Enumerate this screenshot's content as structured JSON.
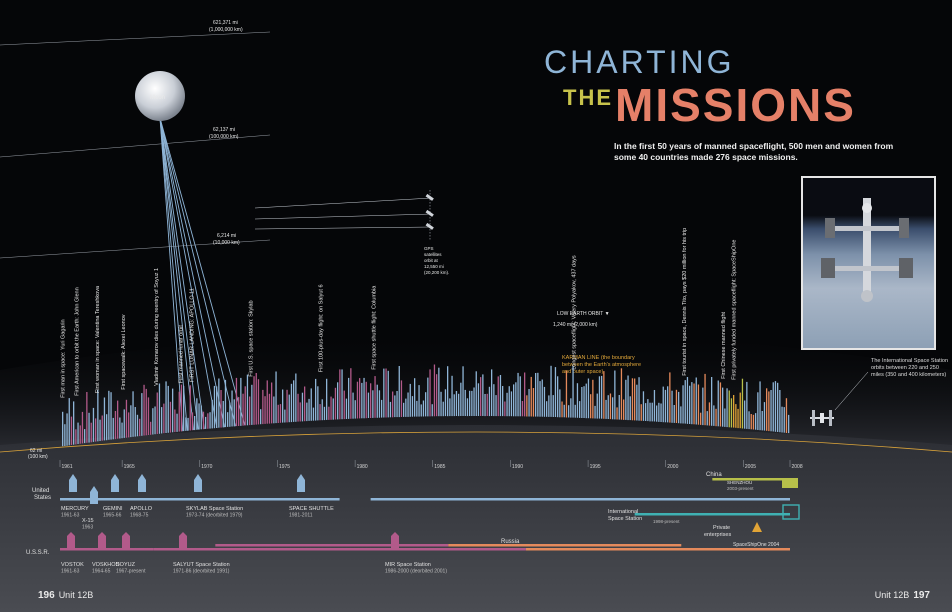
{
  "title": {
    "line1": "CHARTING",
    "line2": "THE",
    "line3": "MISSIONS"
  },
  "intro": "In the first 50 years of manned spaceflight, 500 men and women from some 40 countries made 276 space missions.",
  "iss_caption": "The International Space Station orbits between 220 and 250 miles (350 and 400 kilometers)",
  "footer": {
    "left_page": "196",
    "left_unit": "Unit 12B",
    "right_unit": "Unit 12B",
    "right_page": "197"
  },
  "altitude_lines": [
    {
      "mi": "621,371 mi",
      "km": "(1,000,000 km)"
    },
    {
      "mi": "62,137 mi",
      "km": "(100,000 km)"
    },
    {
      "mi": "6,214 mi",
      "km": "(10,000 km)"
    },
    {
      "mi": "62 mi",
      "km": "(100 km)"
    }
  ],
  "moon_label": "Moon",
  "gps_label": [
    "GPS",
    "satellites",
    "orbit at",
    "12,550 mi",
    "(20,200 km)."
  ],
  "leo_label": [
    "LOW EARTH ORBIT ▼",
    "1,240 mi (2,000 km)"
  ],
  "karman_label": [
    "KARMAN LINE (the boundary",
    "between the Earth's atmosphere",
    "and outer space)"
  ],
  "milestones": [
    {
      "text": "First man in space: Yuri Gagarin",
      "year": 1961.3
    },
    {
      "text": "First American to orbit the Earth: John Glenn",
      "year": 1962.2
    },
    {
      "text": "First woman in space: Valentina Tereshkova",
      "year": 1963.5
    },
    {
      "text": "First spacewalk: Alexei Leonov",
      "year": 1965.2
    },
    {
      "text": "Vladimir Komarov dies during reentry of Soyuz 1",
      "year": 1967.3
    },
    {
      "text": "First manned lunar orbit",
      "year": 1968.9
    },
    {
      "text": "FIRST LUNAR LANDING: APOLLO 11",
      "year": 1969.6
    },
    {
      "text": "First U.S. space station: Skylab",
      "year": 1973.4
    },
    {
      "text": "First 100-plus-day flight: on Salyut 6",
      "year": 1977.9
    },
    {
      "text": "First space shuttle flight: Columbia",
      "year": 1981.3
    },
    {
      "text": "Longest spaceflight: Valery Polyakov, 437 days",
      "year": 1994.2
    },
    {
      "text": "First tourist in space, Dennis Tito, pays $20 million for his trip",
      "year": 2001.3
    },
    {
      "text": "First Chinese manned flight",
      "year": 2003.8
    },
    {
      "text": "First privately funded manned spaceflight: SpaceShipOne",
      "year": 2004.5
    }
  ],
  "chart_data": {
    "type": "bar",
    "x_ticks": [
      "1961",
      "1965",
      "1970",
      "1975",
      "1980",
      "1985",
      "1990",
      "1995",
      "2000",
      "2005",
      "2008"
    ],
    "xlim": [
      1961,
      2008
    ],
    "series": [
      {
        "name": "United States",
        "color": "#8fb5d7"
      },
      {
        "name": "U.S.S.R.",
        "color": "#b25a8a"
      },
      {
        "name": "Russia",
        "color": "#e58a5c"
      },
      {
        "name": "China",
        "color": "#b7c04a"
      },
      {
        "name": "Private enterprises",
        "color": "#e1a436"
      }
    ],
    "programs": {
      "us": [
        {
          "name": "MERCURY",
          "years": "1961-63",
          "start": 1961,
          "end": 1963
        },
        {
          "name": "X-15",
          "years": "1963",
          "start": 1963,
          "end": 1963
        },
        {
          "name": "GEMINI",
          "years": "1965-66",
          "start": 1965,
          "end": 1966
        },
        {
          "name": "APOLLO",
          "years": "1968-75",
          "start": 1968,
          "end": 1975
        },
        {
          "name": "SKYLAB Space Station",
          "years": "1973-74 (deorbited 1979)",
          "start": 1973,
          "end": 1979
        },
        {
          "name": "SPACE SHUTTLE",
          "years": "1981-2011",
          "start": 1981,
          "end": 2008
        }
      ],
      "ussr": [
        {
          "name": "VOSTOK",
          "years": "1961-63",
          "start": 1961,
          "end": 1963
        },
        {
          "name": "VOSKHOD",
          "years": "1964-65",
          "start": 1964,
          "end": 1965
        },
        {
          "name": "SOYUZ",
          "years": "1967-present",
          "start": 1967,
          "end": 2008
        },
        {
          "name": "SALYUT Space Station",
          "years": "1971-86 (deorbited 1991)",
          "start": 1971,
          "end": 1991
        },
        {
          "name": "MIR Space Station",
          "years": "1986-2000 (deorbited 2001)",
          "start": 1986,
          "end": 2001
        }
      ],
      "iss": {
        "name": "International Space Station",
        "years": "1998-present",
        "start": 1998,
        "end": 2008
      },
      "china": {
        "name": "SHENZHOU",
        "years": "2003-present",
        "start": 2003,
        "end": 2008
      },
      "private": {
        "name": "SpaceShipOne",
        "years": "2004",
        "start": 2004,
        "end": 2004
      }
    },
    "row_labels": {
      "us": "United States",
      "ussr": "U.S.S.R.",
      "russia": "Russia",
      "china": "China",
      "iss": "International Space Station",
      "private": "Private enterprises"
    }
  }
}
